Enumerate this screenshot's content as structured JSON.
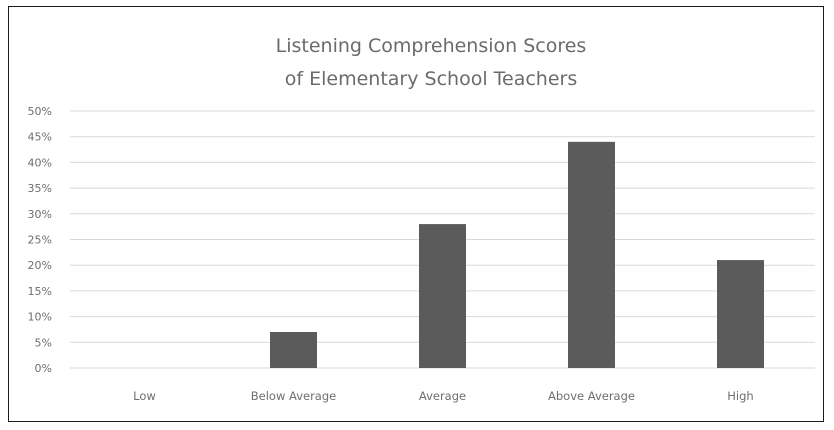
{
  "chart_data": {
    "type": "bar",
    "title_lines": [
      "Listening Comprehension  Scores",
      "of Elementary School Teachers"
    ],
    "categories": [
      "Low",
      "Below Average",
      "Average",
      "Above Average",
      "High"
    ],
    "values": [
      0,
      7,
      28,
      44,
      21
    ],
    "yticks": [
      "0%",
      "5%",
      "10%",
      "15%",
      "20%",
      "25%",
      "30%",
      "35%",
      "40%",
      "45%",
      "50%"
    ],
    "ylim": [
      0,
      50
    ],
    "grid": true,
    "legend": "none",
    "bar_color": "#5b5b5b",
    "grid_color": "#d9d9d9",
    "text_color": "#6e6e6e"
  }
}
